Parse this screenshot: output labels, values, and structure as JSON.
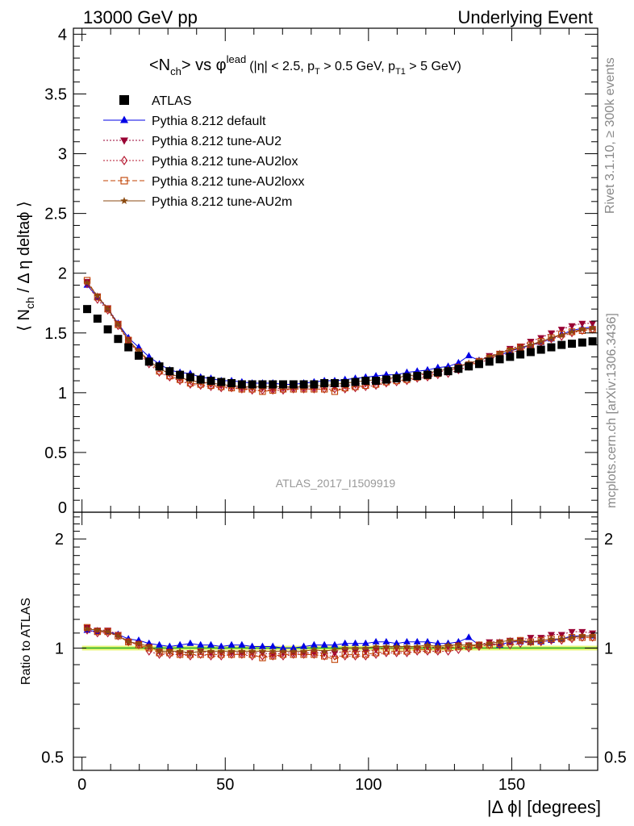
{
  "header": {
    "left": "13000 GeV pp",
    "right": "Underlying Event"
  },
  "side_labels": {
    "rivet": "Rivet 3.1.10, ≥ 300k events",
    "mcplots": "mcplots.cern.ch [arXiv:1306.3436]"
  },
  "colors": {
    "atlas": "#000000",
    "default": "#0000e6",
    "au2": "#990033",
    "au2lox": "#b5172f",
    "au2loxx": "#c04000",
    "au2m": "#8b4a10",
    "band": "#e8f577",
    "ref_line": "#22aa22"
  },
  "chart_data": [
    {
      "type": "scatter",
      "title": "<N_ch> vs φ^lead (|η| < 2.5, p_T > 0.5 GeV, p_T1 > 5 GeV)",
      "title_parts": {
        "main": "<N",
        "main_sub": "ch",
        "vs": "> vs ",
        "phi": "φ",
        "phi_sup": "lead",
        "cuts_a": "(|η| < 2.5, p",
        "cuts_a_sub": "T",
        "cuts_b": " > 0.5 GeV, p",
        "cuts_b_sub": "T1",
        "cuts_c": " > 5 GeV)"
      },
      "ylabel": "⟨ N_ch / Δ η deltaϕ ⟩",
      "ylabel_parts": {
        "pre": "⟨ N",
        "sub": "ch",
        "post": " / Δ η deltaϕ ⟩"
      },
      "xlim": [
        -3,
        180
      ],
      "ylim": [
        0,
        4.05
      ],
      "yticks": [
        "0",
        "0.5",
        "1",
        "1.5",
        "2",
        "2.5",
        "3",
        "3.5",
        "4"
      ],
      "legend_position": "top-left",
      "analysis_tag": "ATLAS_2017_I1509919",
      "x": [
        1.8,
        5.4,
        9.0,
        12.6,
        16.2,
        19.8,
        23.4,
        27.0,
        30.6,
        34.2,
        37.8,
        41.4,
        45.0,
        48.6,
        52.2,
        55.8,
        59.4,
        63.0,
        66.6,
        70.2,
        73.8,
        77.4,
        81.0,
        84.6,
        88.2,
        91.8,
        95.4,
        99.0,
        102.6,
        106.2,
        109.8,
        113.4,
        117.0,
        120.6,
        124.2,
        127.8,
        131.4,
        135.0,
        138.6,
        142.2,
        145.8,
        149.4,
        153.0,
        156.6,
        160.2,
        163.8,
        167.4,
        171.0,
        174.6,
        178.2
      ],
      "series": [
        {
          "name": "ATLAS",
          "marker": "square",
          "line": "none",
          "color_key": "atlas",
          "values": [
            1.7,
            1.62,
            1.53,
            1.45,
            1.38,
            1.31,
            1.26,
            1.22,
            1.18,
            1.15,
            1.13,
            1.11,
            1.1,
            1.09,
            1.08,
            1.07,
            1.07,
            1.07,
            1.07,
            1.07,
            1.07,
            1.07,
            1.07,
            1.08,
            1.08,
            1.08,
            1.09,
            1.1,
            1.1,
            1.11,
            1.12,
            1.13,
            1.14,
            1.15,
            1.17,
            1.18,
            1.2,
            1.22,
            1.24,
            1.26,
            1.28,
            1.3,
            1.32,
            1.34,
            1.36,
            1.38,
            1.4,
            1.41,
            1.42,
            1.43
          ]
        },
        {
          "name": "Pythia 8.212 default",
          "marker": "triangle-up",
          "line": "solid",
          "color_key": "default",
          "values": [
            1.9,
            1.8,
            1.7,
            1.58,
            1.46,
            1.38,
            1.3,
            1.24,
            1.19,
            1.17,
            1.16,
            1.13,
            1.12,
            1.1,
            1.1,
            1.09,
            1.08,
            1.08,
            1.08,
            1.07,
            1.07,
            1.08,
            1.09,
            1.1,
            1.1,
            1.11,
            1.12,
            1.13,
            1.14,
            1.15,
            1.15,
            1.17,
            1.18,
            1.19,
            1.21,
            1.22,
            1.25,
            1.31,
            1.27,
            1.3,
            1.31,
            1.35,
            1.37,
            1.4,
            1.42,
            1.45,
            1.49,
            1.52,
            1.54,
            1.55
          ]
        },
        {
          "name": "Pythia 8.212 tune-AU2",
          "marker": "triangle-down",
          "line": "dotted",
          "color_key": "au2",
          "values": [
            1.93,
            1.81,
            1.71,
            1.58,
            1.44,
            1.35,
            1.27,
            1.2,
            1.16,
            1.12,
            1.1,
            1.09,
            1.07,
            1.06,
            1.05,
            1.04,
            1.04,
            1.04,
            1.03,
            1.04,
            1.04,
            1.04,
            1.04,
            1.05,
            1.05,
            1.06,
            1.07,
            1.08,
            1.09,
            1.11,
            1.12,
            1.13,
            1.14,
            1.16,
            1.17,
            1.19,
            1.22,
            1.24,
            1.27,
            1.31,
            1.33,
            1.37,
            1.39,
            1.43,
            1.46,
            1.5,
            1.53,
            1.56,
            1.58,
            1.58
          ]
        },
        {
          "name": "Pythia 8.212 tune-AU2lox",
          "marker": "diamond-open",
          "line": "dotted",
          "color_key": "au2lox",
          "values": [
            1.91,
            1.78,
            1.69,
            1.56,
            1.43,
            1.33,
            1.24,
            1.17,
            1.13,
            1.1,
            1.07,
            1.06,
            1.05,
            1.04,
            1.04,
            1.03,
            1.02,
            1.02,
            1.02,
            1.02,
            1.03,
            1.03,
            1.03,
            1.03,
            1.03,
            1.03,
            1.04,
            1.05,
            1.06,
            1.08,
            1.09,
            1.1,
            1.12,
            1.13,
            1.15,
            1.16,
            1.19,
            1.22,
            1.25,
            1.28,
            1.31,
            1.33,
            1.36,
            1.39,
            1.42,
            1.45,
            1.47,
            1.5,
            1.52,
            1.53
          ]
        },
        {
          "name": "Pythia 8.212 tune-AU2loxx",
          "marker": "square-open",
          "line": "dashed",
          "color_key": "au2loxx",
          "values": [
            1.94,
            1.8,
            1.7,
            1.57,
            1.44,
            1.34,
            1.26,
            1.18,
            1.14,
            1.11,
            1.08,
            1.07,
            1.06,
            1.05,
            1.04,
            1.03,
            1.03,
            1.01,
            1.02,
            1.03,
            1.03,
            1.03,
            1.03,
            1.03,
            1.01,
            1.04,
            1.05,
            1.06,
            1.07,
            1.09,
            1.1,
            1.11,
            1.13,
            1.14,
            1.16,
            1.18,
            1.21,
            1.23,
            1.26,
            1.29,
            1.32,
            1.35,
            1.38,
            1.4,
            1.43,
            1.46,
            1.49,
            1.51,
            1.52,
            1.53
          ]
        },
        {
          "name": "Pythia 8.212 tune-AU2m",
          "marker": "star",
          "line": "solid",
          "color_key": "au2m",
          "values": [
            1.92,
            1.81,
            1.7,
            1.57,
            1.44,
            1.35,
            1.27,
            1.2,
            1.16,
            1.13,
            1.1,
            1.09,
            1.08,
            1.07,
            1.06,
            1.05,
            1.05,
            1.05,
            1.05,
            1.05,
            1.05,
            1.05,
            1.06,
            1.06,
            1.07,
            1.08,
            1.09,
            1.1,
            1.11,
            1.12,
            1.13,
            1.14,
            1.15,
            1.17,
            1.18,
            1.2,
            1.22,
            1.25,
            1.27,
            1.3,
            1.33,
            1.36,
            1.38,
            1.4,
            1.43,
            1.46,
            1.48,
            1.51,
            1.53,
            1.54
          ]
        }
      ]
    },
    {
      "type": "scatter",
      "ylabel": "Ratio to ATLAS",
      "xlabel": "|Δ ϕ| [degrees]",
      "xlim": [
        -3,
        180
      ],
      "xticks": [
        "0",
        "50",
        "100",
        "150"
      ],
      "ylim": [
        0.46,
        2.37
      ],
      "yscale": "log",
      "yticks": [
        "0.5",
        "1",
        "2"
      ],
      "reference_line": 1,
      "reference_band": [
        0.985,
        1.015
      ],
      "series": [
        {
          "name": "Pythia 8.212 default",
          "color_key": "default",
          "values": [
            1.12,
            1.11,
            1.11,
            1.09,
            1.06,
            1.05,
            1.03,
            1.02,
            1.01,
            1.02,
            1.03,
            1.02,
            1.02,
            1.01,
            1.02,
            1.02,
            1.01,
            1.01,
            1.01,
            1.0,
            1.0,
            1.01,
            1.02,
            1.02,
            1.02,
            1.03,
            1.03,
            1.03,
            1.04,
            1.04,
            1.03,
            1.04,
            1.04,
            1.04,
            1.03,
            1.03,
            1.04,
            1.07,
            1.02,
            1.03,
            1.02,
            1.04,
            1.04,
            1.04,
            1.04,
            1.05,
            1.06,
            1.08,
            1.08,
            1.08
          ]
        },
        {
          "name": "Pythia 8.212 tune-AU2",
          "color_key": "au2",
          "values": [
            1.14,
            1.12,
            1.12,
            1.09,
            1.04,
            1.03,
            1.01,
            0.98,
            0.98,
            0.97,
            0.97,
            0.98,
            0.97,
            0.97,
            0.97,
            0.97,
            0.97,
            0.97,
            0.96,
            0.97,
            0.97,
            0.97,
            0.97,
            0.97,
            0.97,
            0.98,
            0.98,
            0.98,
            0.99,
            1.0,
            1.0,
            1.0,
            1.0,
            1.01,
            1.0,
            1.01,
            1.02,
            1.02,
            1.02,
            1.04,
            1.04,
            1.05,
            1.05,
            1.07,
            1.07,
            1.09,
            1.09,
            1.11,
            1.11,
            1.1
          ]
        },
        {
          "name": "Pythia 8.212 tune-AU2lox",
          "color_key": "au2lox",
          "values": [
            1.12,
            1.1,
            1.1,
            1.08,
            1.04,
            1.02,
            0.98,
            0.96,
            0.96,
            0.96,
            0.95,
            0.96,
            0.95,
            0.95,
            0.96,
            0.96,
            0.95,
            0.95,
            0.95,
            0.95,
            0.96,
            0.96,
            0.96,
            0.95,
            0.95,
            0.95,
            0.95,
            0.95,
            0.96,
            0.97,
            0.97,
            0.97,
            0.98,
            0.98,
            0.98,
            0.98,
            0.99,
            1.0,
            1.01,
            1.02,
            1.02,
            1.02,
            1.03,
            1.04,
            1.04,
            1.05,
            1.05,
            1.06,
            1.07,
            1.07
          ]
        },
        {
          "name": "Pythia 8.212 tune-AU2loxx",
          "color_key": "au2loxx",
          "values": [
            1.14,
            1.11,
            1.11,
            1.08,
            1.04,
            1.02,
            1.0,
            0.97,
            0.97,
            0.96,
            0.96,
            0.96,
            0.96,
            0.96,
            0.96,
            0.96,
            0.96,
            0.94,
            0.95,
            0.96,
            0.96,
            0.96,
            0.96,
            0.95,
            0.93,
            0.96,
            0.96,
            0.96,
            0.97,
            0.98,
            0.98,
            0.98,
            0.99,
            0.99,
            0.99,
            1.0,
            1.01,
            1.01,
            1.02,
            1.02,
            1.03,
            1.04,
            1.05,
            1.04,
            1.05,
            1.06,
            1.06,
            1.07,
            1.07,
            1.07
          ]
        },
        {
          "name": "Pythia 8.212 tune-AU2m",
          "color_key": "au2m",
          "values": [
            1.13,
            1.12,
            1.11,
            1.08,
            1.04,
            1.03,
            1.01,
            0.98,
            0.98,
            0.98,
            0.97,
            0.98,
            0.98,
            0.98,
            0.98,
            0.98,
            0.98,
            0.98,
            0.98,
            0.98,
            0.98,
            0.98,
            0.99,
            0.98,
            0.99,
            1.0,
            1.0,
            1.0,
            1.01,
            1.01,
            1.01,
            1.01,
            1.01,
            1.02,
            1.01,
            1.02,
            1.02,
            1.02,
            1.02,
            1.03,
            1.04,
            1.05,
            1.05,
            1.04,
            1.05,
            1.06,
            1.06,
            1.07,
            1.08,
            1.08
          ]
        }
      ]
    }
  ]
}
